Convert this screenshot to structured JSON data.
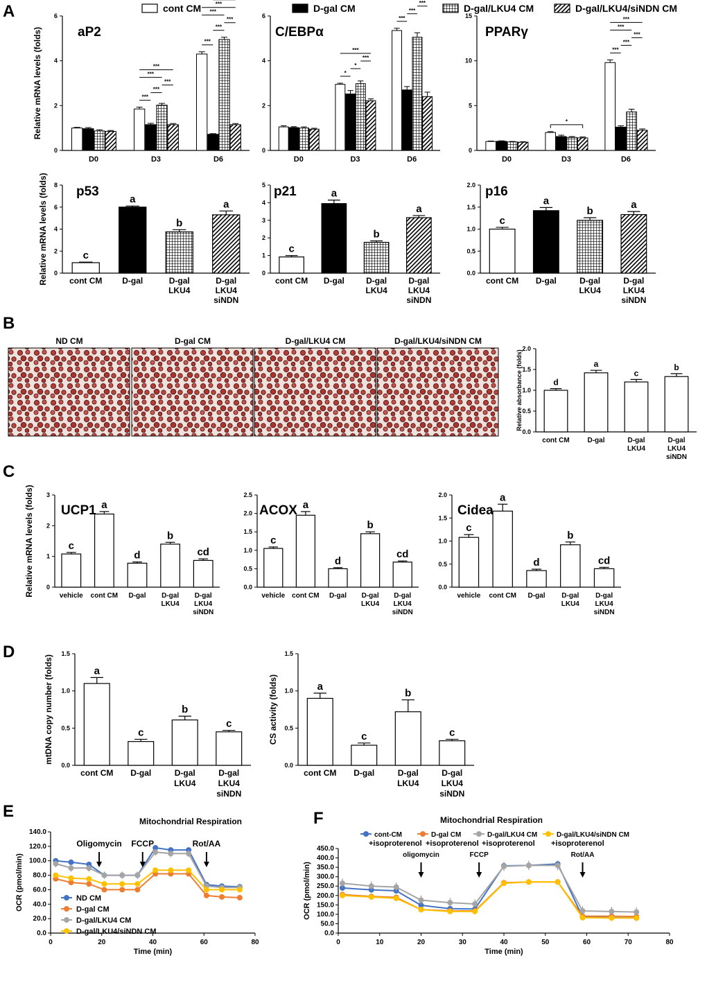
{
  "panel_letters": [
    "A",
    "B",
    "C",
    "D",
    "E",
    "F"
  ],
  "legend_A": [
    "cont CM",
    "D-gal CM",
    "D-gal/LKU4 CM",
    "D-gal/LKU4/siNDN CM"
  ],
  "ylabels": {
    "mrna": "Relative mRNA levels (folds)",
    "absorbance": "Relative absorbance (folds)",
    "mtdna": "mtDNA copy number (folds)",
    "cs": "CS activity (folds)",
    "ocr": "OCR (pmol/min)",
    "time": "Time (min)"
  },
  "micrographs": [
    "ND CM",
    "D-gal CM",
    "D-gal/LKU4 CM",
    "D-gal/LKU4/siNDN CM"
  ],
  "chart_data": [
    {
      "id": "aP2",
      "type": "bar",
      "title": "aP2",
      "categories": [
        "D0",
        "D3",
        "D6"
      ],
      "series": [
        {
          "values": [
            1.0,
            1.85,
            4.3
          ],
          "err": [
            0.03,
            0.08,
            0.1
          ]
        },
        {
          "values": [
            0.97,
            1.15,
            0.72
          ],
          "err": [
            0.05,
            0.06,
            0.03
          ]
        },
        {
          "values": [
            0.87,
            2.02,
            4.95
          ],
          "err": [
            0.05,
            0.08,
            0.1
          ]
        },
        {
          "values": [
            0.85,
            1.15,
            1.15
          ],
          "err": [
            0.04,
            0.05,
            0.05
          ]
        }
      ],
      "ylim": [
        0,
        6
      ],
      "ticks": [
        0,
        2,
        4,
        6
      ],
      "ylabel": "Relative mRNA levels (folds)",
      "sig": [
        {
          "label": "***",
          "items": [
            [
              "D3",
              0,
              1
            ],
            [
              "D3",
              1,
              2
            ],
            [
              "D3",
              2,
              3
            ],
            [
              "D3",
              0,
              2
            ],
            [
              "D3",
              0,
              3
            ],
            [
              "D6",
              0,
              1
            ],
            [
              "D6",
              1,
              2
            ],
            [
              "D6",
              2,
              3
            ],
            [
              "D6",
              0,
              2
            ],
            [
              "D6",
              0,
              3
            ],
            [
              "D6",
              1,
              3
            ]
          ]
        }
      ]
    },
    {
      "id": "cebpa",
      "type": "bar",
      "title": "C/EBPα",
      "categories": [
        "D0",
        "D3",
        "D6"
      ],
      "series": [
        {
          "values": [
            1.05,
            2.95,
            5.35
          ],
          "err": [
            0.05,
            0.05,
            0.1
          ]
        },
        {
          "values": [
            1.02,
            2.52,
            2.7
          ],
          "err": [
            0.04,
            0.15,
            0.15
          ]
        },
        {
          "values": [
            1.0,
            2.98,
            5.05
          ],
          "err": [
            0.05,
            0.12,
            0.2
          ]
        },
        {
          "values": [
            0.95,
            2.22,
            2.4
          ],
          "err": [
            0.04,
            0.08,
            0.2
          ]
        }
      ],
      "ylim": [
        0,
        6
      ],
      "ticks": [
        0,
        2,
        4,
        6
      ],
      "ylabel": "",
      "sig": [
        {
          "label": "*",
          "items": [
            [
              "D3",
              0,
              1
            ],
            [
              "D3",
              1,
              2
            ]
          ]
        },
        {
          "label": "***",
          "items": [
            [
              "D3",
              2,
              3
            ],
            [
              "D3",
              0,
              3
            ],
            [
              "D6",
              0,
              1
            ],
            [
              "D6",
              1,
              2
            ],
            [
              "D6",
              2,
              3
            ],
            [
              "D6",
              0,
              3
            ]
          ]
        }
      ]
    },
    {
      "id": "pparg",
      "type": "bar",
      "title": "PPARγ",
      "categories": [
        "D0",
        "D3",
        "D6"
      ],
      "series": [
        {
          "values": [
            1.0,
            2.0,
            9.8
          ],
          "err": [
            0.05,
            0.1,
            0.3
          ]
        },
        {
          "values": [
            1.02,
            1.55,
            2.6
          ],
          "err": [
            0.05,
            0.15,
            0.15
          ]
        },
        {
          "values": [
            0.95,
            1.45,
            4.3
          ],
          "err": [
            0.05,
            0.1,
            0.3
          ]
        },
        {
          "values": [
            0.92,
            1.4,
            2.25
          ],
          "err": [
            0.05,
            0.1,
            0.15
          ]
        }
      ],
      "ylim": [
        0,
        15
      ],
      "ticks": [
        0,
        5,
        10,
        15
      ],
      "ylabel": "",
      "sig": [
        {
          "label": "*",
          "items": [
            [
              "D3",
              0,
              3
            ]
          ]
        },
        {
          "label": "***",
          "items": [
            [
              "D6",
              0,
              1
            ],
            [
              "D6",
              1,
              2
            ],
            [
              "D6",
              2,
              3
            ],
            [
              "D6",
              0,
              2
            ],
            [
              "D6",
              0,
              3
            ]
          ]
        }
      ]
    },
    {
      "id": "p53",
      "type": "bar",
      "title": "p53",
      "categories": [
        "cont CM",
        "D-gal",
        "D-gal\nLKU4",
        "D-gal\nLKU4\nsiNDN"
      ],
      "values": [
        0.95,
        6.0,
        3.75,
        5.3
      ],
      "err": [
        0.05,
        0.1,
        0.2,
        0.35
      ],
      "letters": [
        "c",
        "a",
        "b",
        "a"
      ],
      "ylim": [
        0,
        8
      ],
      "ticks": [
        0,
        2,
        4,
        6,
        8
      ],
      "ylabel": "Relative mRNA levels (folds)"
    },
    {
      "id": "p21",
      "type": "bar",
      "title": "p21",
      "categories": [
        "cont CM",
        "D-gal",
        "D-gal\nLKU4",
        "D-gal\nLKU4\nsiNDN"
      ],
      "values": [
        0.92,
        3.95,
        1.75,
        3.15
      ],
      "err": [
        0.08,
        0.2,
        0.08,
        0.12
      ],
      "letters": [
        "c",
        "a",
        "b",
        "a"
      ],
      "ylim": [
        0,
        5
      ],
      "ticks": [
        0,
        1,
        2,
        3,
        4,
        5
      ],
      "ylabel": ""
    },
    {
      "id": "p16",
      "type": "bar",
      "title": "p16",
      "categories": [
        "cont CM",
        "D-gal",
        "D-gal\nLKU4",
        "D-gal\nLKU4\nsiNDN"
      ],
      "values": [
        1.0,
        1.42,
        1.2,
        1.33
      ],
      "err": [
        0.04,
        0.07,
        0.06,
        0.07
      ],
      "letters": [
        "c",
        "a",
        "b",
        "a"
      ],
      "ylim": [
        0,
        2.0
      ],
      "ticks": [
        0.0,
        0.5,
        1.0,
        1.5,
        2.0
      ],
      "ylabel": ""
    },
    {
      "id": "absB",
      "type": "bar",
      "title": "",
      "categories": [
        "cont CM",
        "D-gal",
        "D-gal\nLKU4",
        "D-gal\nLKU4\nsiNDN"
      ],
      "values": [
        1.0,
        1.42,
        1.2,
        1.33
      ],
      "err": [
        0.04,
        0.06,
        0.06,
        0.07
      ],
      "letters": [
        "d",
        "a",
        "c",
        "b"
      ],
      "ylim": [
        0,
        2.0
      ],
      "ticks": [
        0.0,
        0.5,
        1.0,
        1.5,
        2.0
      ],
      "ylabel": "Relative absorbance (folds)"
    },
    {
      "id": "UCP1",
      "type": "bar",
      "title": "UCP1",
      "categories": [
        "vehicle",
        "cont CM",
        "D-gal",
        "D-gal\nLKU4",
        "D-gal\nLKU4\nsiNDN"
      ],
      "values": [
        1.08,
        2.38,
        0.78,
        1.4,
        0.87
      ],
      "err": [
        0.05,
        0.08,
        0.04,
        0.06,
        0.05
      ],
      "letters": [
        "c",
        "a",
        "d",
        "b",
        "cd"
      ],
      "ylim": [
        0,
        3
      ],
      "ticks": [
        0,
        1,
        2,
        3
      ],
      "ylabel": "Relative mRNA levels (folds)"
    },
    {
      "id": "ACOX",
      "type": "bar",
      "title": "ACOX",
      "categories": [
        "vehicle",
        "cont CM",
        "D-gal",
        "D-gal\nLKU4",
        "D-gal\nLKU4\nsiNDN"
      ],
      "values": [
        1.05,
        1.95,
        0.5,
        1.45,
        0.68
      ],
      "err": [
        0.04,
        0.1,
        0.03,
        0.05,
        0.03
      ],
      "letters": [
        "c",
        "a",
        "d",
        "b",
        "cd"
      ],
      "ylim": [
        0,
        2.5
      ],
      "ticks": [
        0.0,
        0.5,
        1.0,
        1.5,
        2.0,
        2.5
      ],
      "ylabel": ""
    },
    {
      "id": "Cidea",
      "type": "bar",
      "title": "Cidea",
      "categories": [
        "vehicle",
        "cont CM",
        "D-gal",
        "D-gal\nLKU4",
        "D-gal\nLKU4\nsiNDN"
      ],
      "values": [
        1.08,
        1.65,
        0.36,
        0.92,
        0.4
      ],
      "err": [
        0.06,
        0.15,
        0.03,
        0.06,
        0.03
      ],
      "letters": [
        "c",
        "a",
        "d",
        "b",
        "cd"
      ],
      "ylim": [
        0,
        2.0
      ],
      "ticks": [
        0.0,
        0.5,
        1.0,
        1.5,
        2.0
      ],
      "ylabel": ""
    },
    {
      "id": "mtDNA",
      "type": "bar",
      "title": "",
      "categories": [
        "cont CM",
        "D-gal",
        "D-gal\nLKU4",
        "D-gal\nLKU4\nsiNDN"
      ],
      "values": [
        1.1,
        0.32,
        0.61,
        0.45
      ],
      "err": [
        0.08,
        0.03,
        0.05,
        0.02
      ],
      "letters": [
        "a",
        "c",
        "b",
        "c"
      ],
      "ylim": [
        0,
        1.5
      ],
      "ticks": [
        0.0,
        0.5,
        1.0,
        1.5
      ],
      "ylabel": "mtDNA copy number (folds)"
    },
    {
      "id": "CS",
      "type": "bar",
      "title": "",
      "categories": [
        "cont CM",
        "D-gal",
        "D-gal\nLKU4",
        "D-gal\nLKU4\nsiNDN"
      ],
      "values": [
        0.9,
        0.27,
        0.72,
        0.33
      ],
      "err": [
        0.07,
        0.03,
        0.16,
        0.02
      ],
      "letters": [
        "a",
        "c",
        "b",
        "c"
      ],
      "ylim": [
        0,
        1.5
      ],
      "ticks": [
        0.0,
        0.5,
        1.0,
        1.5
      ],
      "ylabel": "CS activity (folds)"
    },
    {
      "id": "E",
      "type": "line",
      "title": "Mitochondrial Respiration",
      "x": [
        2,
        8,
        15,
        21,
        28,
        34,
        41,
        47,
        54,
        61,
        67,
        74
      ],
      "series": [
        {
          "name": "ND CM",
          "color": "#4472C4",
          "values": [
            100,
            98,
            95,
            80,
            80,
            80,
            118,
            115,
            115,
            67,
            65,
            64
          ],
          "err": 3
        },
        {
          "name": "D-gal CM",
          "color": "#ED7D31",
          "values": [
            75,
            70,
            68,
            60,
            60,
            60,
            82,
            82,
            82,
            52,
            50,
            49
          ],
          "err": 3
        },
        {
          "name": "D-gal/LKU4 CM",
          "color": "#A5A5A5",
          "values": [
            96,
            90,
            90,
            80,
            80,
            80,
            112,
            110,
            110,
            65,
            63,
            63
          ],
          "err": 5
        },
        {
          "name": "D-gal/LKU4/siNDN CM",
          "color": "#FFC000",
          "values": [
            80,
            76,
            75,
            68,
            68,
            68,
            87,
            87,
            87,
            60,
            60,
            60
          ],
          "err": 3
        }
      ],
      "injections": [
        {
          "label": "Oligomycin",
          "x": 19
        },
        {
          "label": "FCCP",
          "x": 36
        },
        {
          "label": "Rot/AA",
          "x": 61
        }
      ],
      "xlim": [
        0,
        80
      ],
      "xticks": [
        0,
        20,
        40,
        60,
        80
      ],
      "ylim": [
        0,
        140
      ],
      "yticks": [
        0,
        20,
        40,
        60,
        80,
        100,
        120,
        140
      ],
      "ytick_labels": [
        "0.0",
        "20.0",
        "40.0",
        "60.0",
        "80.0",
        "100.0",
        "120.0",
        "140.0"
      ],
      "xlabel": "Time (min)",
      "ylabel": "OCR (pmol/min)"
    },
    {
      "id": "F",
      "type": "line",
      "title": "Mitochondrial Respiration",
      "x": [
        1,
        8,
        14,
        20,
        27,
        33,
        40,
        46,
        53,
        59,
        66,
        72
      ],
      "series": [
        {
          "name": "cont-CM",
          "sub": "+isoproterenol",
          "color": "#4472C4",
          "values": [
            240,
            230,
            225,
            148,
            130,
            128,
            358,
            360,
            368,
            85,
            82,
            80
          ],
          "err": 15
        },
        {
          "name": "D-gal CM",
          "sub": "+isoproterenol",
          "color": "#ED7D31",
          "values": [
            205,
            195,
            190,
            125,
            118,
            118,
            268,
            272,
            272,
            90,
            90,
            88
          ],
          "err": 15
        },
        {
          "name": "D-gal/LKU4 CM",
          "sub": "+isoproterenol",
          "color": "#A5A5A5",
          "values": [
            265,
            250,
            245,
            175,
            162,
            155,
            355,
            360,
            360,
            118,
            115,
            112
          ],
          "err": 25
        },
        {
          "name": "D-gal/LKU4/siNDN CM",
          "sub": "+isoproterenol",
          "color": "#FFC000",
          "values": [
            200,
            192,
            185,
            125,
            115,
            115,
            265,
            272,
            272,
            82,
            80,
            80
          ],
          "err": 15
        }
      ],
      "injections": [
        {
          "label": "oligomycin",
          "x": 20
        },
        {
          "label": "FCCP",
          "x": 34
        },
        {
          "label": "Rot/AA",
          "x": 59
        }
      ],
      "xlim": [
        0,
        80
      ],
      "xticks": [
        0,
        10,
        20,
        30,
        40,
        50,
        60,
        70,
        80
      ],
      "ylim": [
        0,
        450
      ],
      "yticks": [
        0,
        50,
        100,
        150,
        200,
        250,
        300,
        350,
        400,
        450
      ],
      "ytick_labels": [
        "0.0",
        "50.0",
        "100.0",
        "150.0",
        "200.0",
        "250.0",
        "300.0",
        "350.0",
        "400.0",
        "450.0"
      ],
      "xlabel": "Time (min)",
      "ylabel": "OCR (pmol/min)"
    }
  ]
}
